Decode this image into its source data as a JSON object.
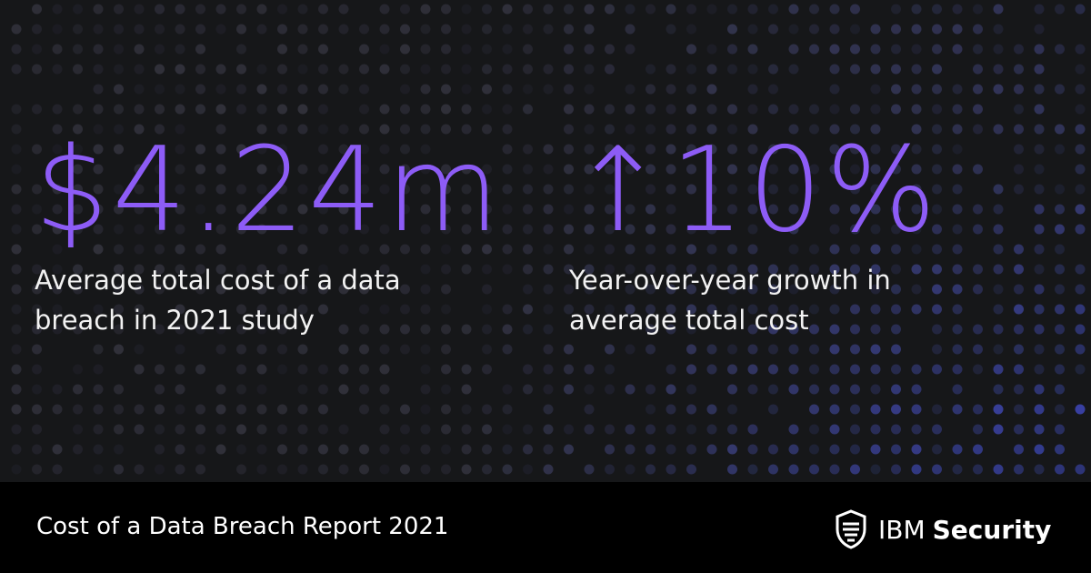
{
  "stats": [
    {
      "value": "$4.24m",
      "label": "Average total cost of a data breach in 2021 study"
    },
    {
      "value": "↑10%",
      "label": "Year-over-year growth in average total cost"
    }
  ],
  "footer": {
    "title": "Cost of a Data Breach Report 2021",
    "brand": {
      "name": "IBM",
      "product": "Security"
    }
  }
}
